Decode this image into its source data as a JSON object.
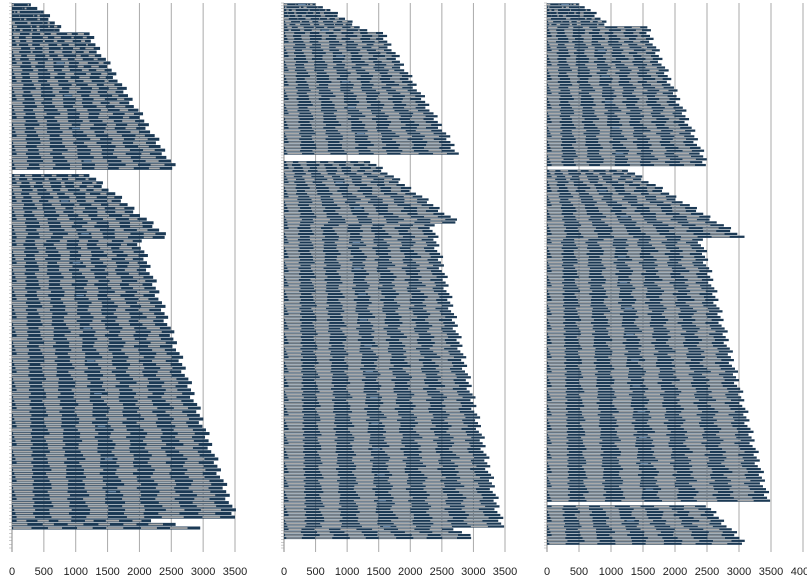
{
  "colors": {
    "bar_dark": "#1c3a55",
    "bar_light": "#a9a9a9",
    "bar_highlight": "#6e8fb0",
    "grid": "#aaaaaa",
    "axis_text": "#222222"
  },
  "chart_data": [
    {
      "type": "bar",
      "orientation": "horizontal",
      "title": "",
      "xlabel": "",
      "ylabel": "",
      "xlim": [
        0,
        3500
      ],
      "x_ticks": [
        0,
        500,
        1000,
        1500,
        2000,
        2500,
        3000,
        3500
      ],
      "grid": true,
      "legend": "none",
      "rows_total": 150,
      "groups": [
        {
          "start_row": 0,
          "count": 8,
          "end_from": 350,
          "end_to": 800
        },
        {
          "start_row": 8,
          "count": 38,
          "end_from": 1200,
          "end_to": 2550
        },
        {
          "start_row": 47,
          "count": 18,
          "end_from": 1250,
          "end_to": 2450
        },
        {
          "start_row": 65,
          "count": 77,
          "end_from": 2000,
          "end_to": 3500
        },
        {
          "start_row": 142,
          "count": 3,
          "end_from": 2200,
          "end_to": 2900
        }
      ]
    },
    {
      "type": "bar",
      "orientation": "horizontal",
      "title": "",
      "xlabel": "",
      "ylabel": "",
      "xlim": [
        0,
        3500
      ],
      "x_ticks": [
        0,
        500,
        1000,
        1500,
        2000,
        2500,
        3000,
        3500
      ],
      "grid": true,
      "legend": "none",
      "rows_total": 190,
      "groups": [
        {
          "start_row": 0,
          "count": 10,
          "end_from": 550,
          "end_to": 1300
        },
        {
          "start_row": 10,
          "count": 43,
          "end_from": 1550,
          "end_to": 2750
        },
        {
          "start_row": 55,
          "count": 22,
          "end_from": 1400,
          "end_to": 2750
        },
        {
          "start_row": 77,
          "count": 106,
          "end_from": 2350,
          "end_to": 3450
        },
        {
          "start_row": 183,
          "count": 4,
          "end_from": 2700,
          "end_to": 3000
        }
      ]
    },
    {
      "type": "bar",
      "orientation": "horizontal",
      "title": "",
      "xlabel": "",
      "ylabel": "",
      "xlim": [
        0,
        4000
      ],
      "x_ticks": [
        0,
        500,
        1000,
        1500,
        2000,
        2500,
        3000,
        3500,
        4000
      ],
      "grid": true,
      "legend": "none",
      "rows_total": 190,
      "groups": [
        {
          "start_row": 0,
          "count": 8,
          "end_from": 550,
          "end_to": 950
        },
        {
          "start_row": 8,
          "count": 49,
          "end_from": 1550,
          "end_to": 2500
        },
        {
          "start_row": 58,
          "count": 24,
          "end_from": 1300,
          "end_to": 3050
        },
        {
          "start_row": 82,
          "count": 92,
          "end_from": 2400,
          "end_to": 3450
        },
        {
          "start_row": 175,
          "count": 14,
          "end_from": 2500,
          "end_to": 3100
        }
      ]
    }
  ]
}
